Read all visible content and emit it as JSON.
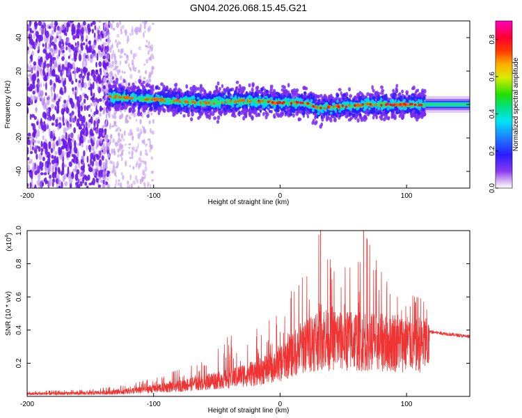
{
  "chart_data": [
    {
      "type": "heatmap",
      "title": "GN04.2026.068.15.45.G21",
      "xlabel": "Height of straight line (km)",
      "ylabel": "Frequency (Hz)",
      "xlim": [
        -200,
        150
      ],
      "ylim": [
        -50,
        50
      ],
      "xticks": [
        -200,
        -100,
        0,
        100
      ],
      "yticks": [
        40,
        20,
        0,
        -20,
        -40
      ],
      "colorbar": {
        "label": "Normalized spectral amplitude",
        "range": [
          0.0,
          0.9
        ],
        "ticks": [
          "0.0",
          "0.2",
          "0.4",
          "0.6",
          "0.8"
        ]
      },
      "ridge": {
        "description_values": "dominant frequency ridge near 0 Hz",
        "points": [
          {
            "x": -135,
            "f": 5
          },
          {
            "x": -120,
            "f": 4
          },
          {
            "x": -100,
            "f": 3
          },
          {
            "x": -80,
            "f": 2
          },
          {
            "x": -60,
            "f": 1
          },
          {
            "x": -40,
            "f": 2
          },
          {
            "x": -20,
            "f": 2
          },
          {
            "x": 0,
            "f": 1
          },
          {
            "x": 20,
            "f": 1
          },
          {
            "x": 30,
            "f": -2
          },
          {
            "x": 50,
            "f": -1
          },
          {
            "x": 70,
            "f": 0
          },
          {
            "x": 90,
            "f": 0
          },
          {
            "x": 115,
            "f": 0
          },
          {
            "x": 150,
            "f": 0
          }
        ]
      }
    },
    {
      "type": "line",
      "xlabel": "Height of straight line (km)",
      "ylabel": "SNR (10 * v/v)",
      "scale_label": "(x10",
      "scale_exp": "4",
      "xlim": [
        -200,
        150
      ],
      "ylim": [
        0,
        1.0
      ],
      "xticks": [
        -200,
        -100,
        0,
        100
      ],
      "yticks": [
        "0.2",
        "0.4",
        "0.6",
        "0.8",
        "1.0"
      ],
      "series": [
        {
          "name": "SNR",
          "color": "#f03434",
          "envelope": [
            {
              "x": -200,
              "mean": 0.02,
              "peak": 0.03
            },
            {
              "x": -150,
              "mean": 0.025,
              "peak": 0.04
            },
            {
              "x": -120,
              "mean": 0.04,
              "peak": 0.07
            },
            {
              "x": -100,
              "mean": 0.06,
              "peak": 0.11
            },
            {
              "x": -80,
              "mean": 0.08,
              "peak": 0.16
            },
            {
              "x": -60,
              "mean": 0.11,
              "peak": 0.21
            },
            {
              "x": -40,
              "mean": 0.14,
              "peak": 0.38
            },
            {
              "x": -20,
              "mean": 0.18,
              "peak": 0.4
            },
            {
              "x": 0,
              "mean": 0.25,
              "peak": 0.5
            },
            {
              "x": 10,
              "mean": 0.33,
              "peak": 0.65
            },
            {
              "x": 20,
              "mean": 0.4,
              "peak": 0.78
            },
            {
              "x": 32,
              "mean": 0.45,
              "peak": 1.0
            },
            {
              "x": 45,
              "mean": 0.43,
              "peak": 0.7
            },
            {
              "x": 66,
              "mean": 0.43,
              "peak": 1.0
            },
            {
              "x": 80,
              "mean": 0.42,
              "peak": 0.75
            },
            {
              "x": 100,
              "mean": 0.41,
              "peak": 0.62
            },
            {
              "x": 115,
              "mean": 0.4,
              "peak": 0.58
            },
            {
              "x": 118,
              "mean": 0.39,
              "peak": 0.4
            },
            {
              "x": 150,
              "mean": 0.36,
              "peak": 0.37
            }
          ]
        }
      ]
    }
  ]
}
